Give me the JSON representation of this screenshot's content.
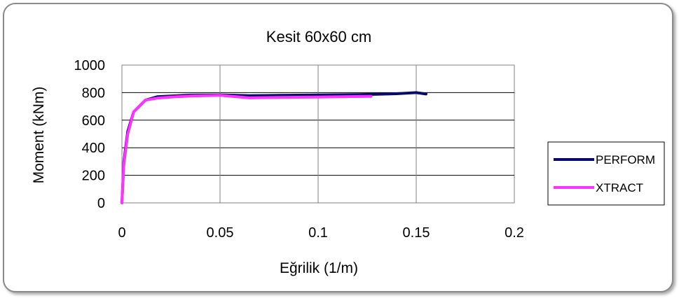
{
  "chart_data": {
    "type": "line",
    "title": "Kesit 60x60 cm",
    "xlabel": "Eğrilik (1/m)",
    "ylabel": "Moment  (kNm)",
    "xlim": [
      0,
      0.2
    ],
    "ylim": [
      0,
      1000
    ],
    "xticks": [
      "0",
      "0.05",
      "0.1",
      "0.15",
      "0.2"
    ],
    "yticks": [
      "0",
      "200",
      "400",
      "600",
      "800",
      "1000"
    ],
    "grid": true,
    "legend_position": "right",
    "series": [
      {
        "name": "PERFORM",
        "color": "#0a0a6e",
        "x": [
          0,
          0.001,
          0.003,
          0.006,
          0.012,
          0.018,
          0.025,
          0.035,
          0.05,
          0.065,
          0.08,
          0.1,
          0.12,
          0.13,
          0.14,
          0.15,
          0.155
        ],
        "y": [
          0,
          300,
          520,
          660,
          745,
          770,
          775,
          782,
          784,
          778,
          780,
          783,
          786,
          788,
          792,
          800,
          790
        ]
      },
      {
        "name": "XTRACT",
        "color": "#ff33ff",
        "x": [
          0,
          0.001,
          0.003,
          0.006,
          0.012,
          0.018,
          0.025,
          0.035,
          0.05,
          0.065,
          0.08,
          0.1,
          0.115,
          0.127
        ],
        "y": [
          0,
          280,
          500,
          660,
          745,
          760,
          768,
          775,
          780,
          762,
          765,
          768,
          771,
          773
        ]
      }
    ]
  }
}
